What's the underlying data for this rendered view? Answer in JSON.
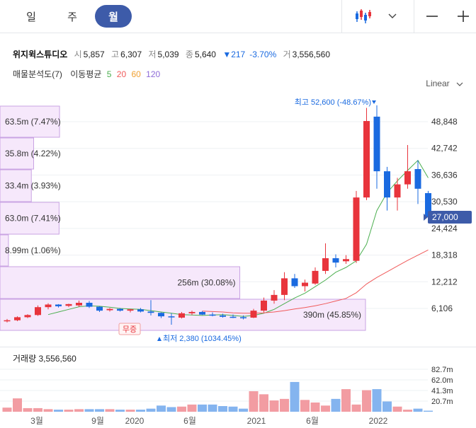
{
  "period_tabs": [
    {
      "label": "일",
      "active": false
    },
    {
      "label": "주",
      "active": false
    },
    {
      "label": "월",
      "active": true
    }
  ],
  "toolbar": {
    "chart_type_icon": "candlestick-icon",
    "dropdown_icon": "chevron-down-icon",
    "zoom_out_icon": "minus-icon",
    "zoom_in_icon": "plus-icon"
  },
  "stock": {
    "name": "위지윅스튜디오",
    "open_label": "시",
    "open": "5,857",
    "high_label": "고",
    "high": "6,307",
    "low_label": "저",
    "low": "5,039",
    "close_label": "종",
    "close": "5,640",
    "change": "▼217",
    "change_pct": "-3.70%",
    "volume_label": "거",
    "volume": "3,556,560"
  },
  "indicators": {
    "volume_profile": "매물분석도(7)",
    "ma_label": "이동평균",
    "ma_periods": [
      "5",
      "20",
      "60",
      "120"
    ],
    "ma_colors": [
      "#4caf50",
      "#f05a5a",
      "#f0a030",
      "#8e6bd8"
    ]
  },
  "scale_mode": "Linear",
  "volume_panel_label": "거래량 3,556,560",
  "colors": {
    "up": "#e8343c",
    "down": "#1a6ae0",
    "accent": "#3d5ba9",
    "profile": "#c9a3e3"
  },
  "chart_data": {
    "type": "candlestick",
    "y_ticks": [
      "48,848",
      "42,742",
      "36,636",
      "30,530",
      "24,424",
      "18,318",
      "12,212",
      "6,106"
    ],
    "last_price_tag": "27,000",
    "high_marker": "최고 52,600 (-48.67%)",
    "low_marker": "최저 2,380 (1034.45%)",
    "event_label": "무증",
    "x_labels": [
      "3월",
      "9월",
      "2020",
      "6월",
      "2021",
      "6월",
      "2022"
    ],
    "volume_ticks": [
      "82.7m",
      "62.0m",
      "41.3m",
      "20.7m"
    ],
    "volume_profile": [
      {
        "label": "63.5m (7.47%)",
        "pct": 7.47
      },
      {
        "label": "35.8m (4.22%)",
        "pct": 4.22
      },
      {
        "label": "33.4m (3.93%)",
        "pct": 3.93
      },
      {
        "label": "63.0m (7.41%)",
        "pct": 7.41
      },
      {
        "label": "8.99m (1.06%)",
        "pct": 1.06
      },
      {
        "label": "256m (30.08%)",
        "pct": 30.08
      },
      {
        "label": "390m (45.85%)",
        "pct": 45.85
      }
    ],
    "candles": [
      {
        "o": 3200,
        "h": 3700,
        "l": 2900,
        "c": 3400
      },
      {
        "o": 3400,
        "h": 4300,
        "l": 3200,
        "c": 4100
      },
      {
        "o": 4100,
        "h": 4800,
        "l": 3900,
        "c": 4600
      },
      {
        "o": 4600,
        "h": 6800,
        "l": 4400,
        "c": 6400
      },
      {
        "o": 6400,
        "h": 7300,
        "l": 5900,
        "c": 7000
      },
      {
        "o": 7000,
        "h": 7100,
        "l": 6300,
        "c": 6600
      },
      {
        "o": 6700,
        "h": 7200,
        "l": 6400,
        "c": 7100
      },
      {
        "o": 6800,
        "h": 7900,
        "l": 6500,
        "c": 7400
      },
      {
        "o": 7400,
        "h": 7800,
        "l": 6200,
        "c": 6500
      },
      {
        "o": 6500,
        "h": 6600,
        "l": 5300,
        "c": 5600
      },
      {
        "o": 5700,
        "h": 6200,
        "l": 5400,
        "c": 6000
      },
      {
        "o": 6000,
        "h": 6200,
        "l": 5400,
        "c": 5600
      },
      {
        "o": 5600,
        "h": 6000,
        "l": 5200,
        "c": 5900
      },
      {
        "o": 5900,
        "h": 6200,
        "l": 5200,
        "c": 5400
      },
      {
        "o": 5400,
        "h": 8000,
        "l": 4500,
        "c": 5100
      },
      {
        "o": 5100,
        "h": 5200,
        "l": 3900,
        "c": 4300
      },
      {
        "o": 4300,
        "h": 5000,
        "l": 2380,
        "c": 4200
      },
      {
        "o": 4000,
        "h": 5300,
        "l": 3800,
        "c": 5000
      },
      {
        "o": 5000,
        "h": 5600,
        "l": 4600,
        "c": 5300
      },
      {
        "o": 5300,
        "h": 5500,
        "l": 4600,
        "c": 4700
      },
      {
        "o": 4700,
        "h": 5200,
        "l": 4300,
        "c": 4500
      },
      {
        "o": 4500,
        "h": 4900,
        "l": 4000,
        "c": 4200
      },
      {
        "o": 4200,
        "h": 4700,
        "l": 3900,
        "c": 4100
      },
      {
        "o": 4100,
        "h": 4500,
        "l": 3600,
        "c": 3900
      },
      {
        "o": 4000,
        "h": 6000,
        "l": 3900,
        "c": 5600
      },
      {
        "o": 5600,
        "h": 8600,
        "l": 5200,
        "c": 7900
      },
      {
        "o": 7900,
        "h": 10300,
        "l": 7200,
        "c": 9200
      },
      {
        "o": 9200,
        "h": 14400,
        "l": 8000,
        "c": 13000
      },
      {
        "o": 13000,
        "h": 14000,
        "l": 10800,
        "c": 11200
      },
      {
        "o": 11200,
        "h": 12700,
        "l": 10000,
        "c": 12000
      },
      {
        "o": 11800,
        "h": 15500,
        "l": 11500,
        "c": 14700
      },
      {
        "o": 14700,
        "h": 21000,
        "l": 14000,
        "c": 17600
      },
      {
        "o": 17600,
        "h": 18500,
        "l": 15500,
        "c": 16600
      },
      {
        "o": 16900,
        "h": 18300,
        "l": 16300,
        "c": 17400
      },
      {
        "o": 17000,
        "h": 33000,
        "l": 16500,
        "c": 31500
      },
      {
        "o": 31500,
        "h": 52000,
        "l": 30900,
        "c": 49000
      },
      {
        "o": 50000,
        "h": 52600,
        "l": 33500,
        "c": 37500
      },
      {
        "o": 37500,
        "h": 38500,
        "l": 28500,
        "c": 31500
      },
      {
        "o": 31500,
        "h": 36000,
        "l": 28500,
        "c": 34500
      },
      {
        "o": 34500,
        "h": 43500,
        "l": 33500,
        "c": 37500
      },
      {
        "o": 38000,
        "h": 40000,
        "l": 30000,
        "c": 33500
      },
      {
        "o": 32500,
        "h": 33000,
        "l": 26500,
        "c": 27000
      }
    ],
    "ma5": [
      null,
      null,
      null,
      null,
      4700,
      5300,
      5900,
      6500,
      6700,
      6600,
      6400,
      6100,
      6000,
      5900,
      5600,
      5300,
      5000,
      4700,
      4600,
      4500,
      4600,
      4700,
      4500,
      4300,
      4500,
      5000,
      5900,
      7200,
      8500,
      9600,
      11100,
      12600,
      14400,
      15500,
      17000,
      20800,
      28500,
      32600,
      35300,
      37700,
      40000,
      36000
    ],
    "ma20": [
      null,
      null,
      null,
      null,
      null,
      null,
      null,
      null,
      null,
      null,
      null,
      null,
      null,
      null,
      null,
      null,
      null,
      null,
      null,
      5500,
      5400,
      5300,
      5100,
      5000,
      5000,
      5100,
      5300,
      5600,
      6000,
      6300,
      6700,
      7200,
      7800,
      8400,
      9700,
      11700,
      13200,
      14500,
      15800,
      17100,
      18300,
      19500
    ]
  }
}
